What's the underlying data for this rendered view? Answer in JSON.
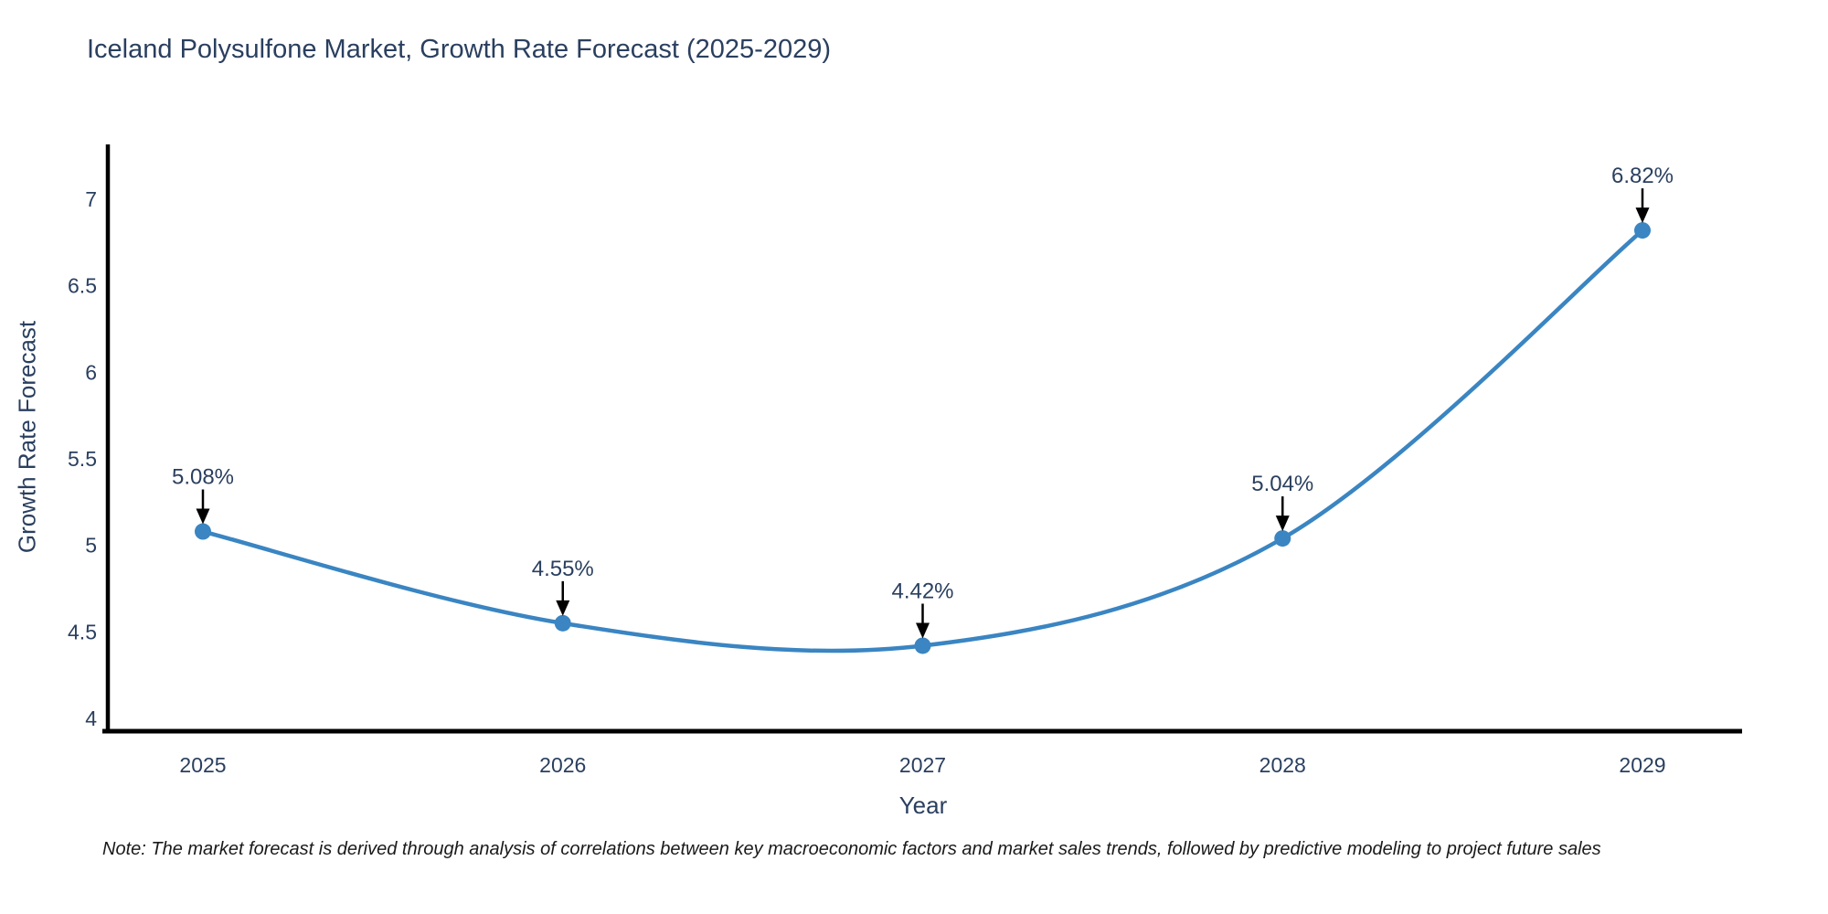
{
  "note": "Note: The market forecast is derived through analysis of correlations between key macroeconomic factors and market sales trends, followed by predictive modeling to project future sales",
  "colors": {
    "line": "#3a85c2",
    "marker": "#3a85c2",
    "text": "#2a3f5f",
    "axis": "#000000",
    "arrow": "#000000",
    "note_text": "#1a1a1a",
    "background": "#ffffff"
  },
  "chart_data": {
    "type": "line",
    "title": "Iceland Polysulfone Market, Growth Rate Forecast (2025-2029)",
    "xlabel": "Year",
    "ylabel": "Growth Rate Forecast",
    "x": [
      2025,
      2026,
      2027,
      2028,
      2029
    ],
    "y": [
      5.08,
      4.55,
      4.42,
      5.04,
      6.82
    ],
    "point_labels": [
      "5.08%",
      "4.55%",
      "4.42%",
      "5.04%",
      "6.82%"
    ],
    "x_ticks": [
      "2025",
      "2026",
      "2027",
      "2028",
      "2029"
    ],
    "y_ticks": [
      4,
      4.5,
      5,
      5.5,
      6,
      6.5,
      7
    ],
    "ylim": [
      3.92,
      7.34
    ],
    "line_shape": "spline",
    "grid": false,
    "legend": "none",
    "annotations_style": "arrow-down-to-point"
  }
}
